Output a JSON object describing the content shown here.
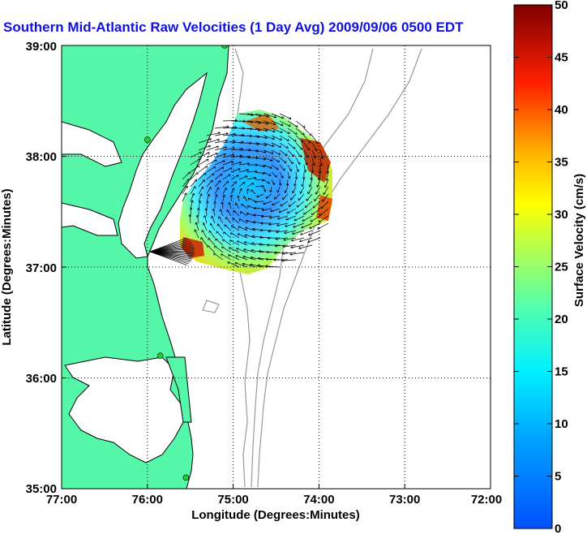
{
  "title": "Southern Mid-Atlantic Raw Velocities (1 Day Avg) 2009/09/06 0500 EDT",
  "axes": {
    "x_label": "Longitude (Degrees:Minutes)",
    "y_label": "Latitude (Degrees:Minutes)",
    "x_ticks": [
      "77:00",
      "76:00",
      "75:00",
      "74:00",
      "73:00",
      "72:00"
    ],
    "y_ticks": [
      "39:00",
      "38:00",
      "37:00",
      "36:00",
      "35:00"
    ]
  },
  "colorbar": {
    "label": "Surface Velocity (cm/s)",
    "ticks": [
      "50",
      "45",
      "40",
      "35",
      "30",
      "25",
      "20",
      "15",
      "10",
      "5",
      "0"
    ],
    "min": 0,
    "max": 50
  },
  "colors": {
    "land": "#55f7a8",
    "water": "#ffffff",
    "title": "#1010e0",
    "station": "#22cc33"
  },
  "stations": [
    {
      "lon": -75.1,
      "lat": 39.0
    },
    {
      "lon": -76.0,
      "lat": 38.15
    },
    {
      "lon": -75.85,
      "lat": 36.2
    },
    {
      "lon": -75.55,
      "lat": 35.1
    }
  ]
}
